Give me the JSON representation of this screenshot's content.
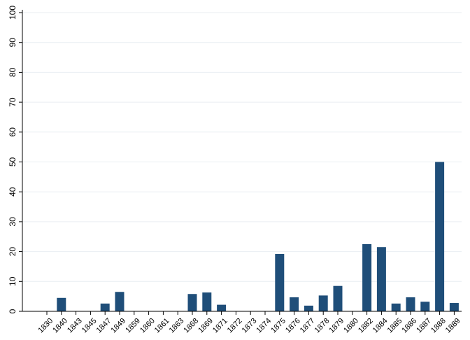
{
  "chart_data": {
    "type": "bar",
    "title": "",
    "xlabel": "",
    "ylabel": "",
    "ylim": [
      0,
      100
    ],
    "yticks": [
      0,
      10,
      20,
      30,
      40,
      50,
      60,
      70,
      80,
      90,
      100
    ],
    "grid": true,
    "legend": "none",
    "bar_color": "#1f4e79",
    "categories": [
      "1830",
      "1840",
      "1843",
      "1845",
      "1847",
      "1849",
      "1859",
      "1860",
      "1861",
      "1863",
      "1868",
      "1869",
      "1871",
      "1872",
      "1873",
      "1874",
      "1875",
      "1876",
      "1877",
      "1878",
      "1879",
      "1880",
      "1882",
      "1884",
      "1885",
      "1886",
      "1887",
      "1888",
      "1889"
    ],
    "values": [
      0,
      4.5,
      0,
      0,
      2.6,
      6.5,
      0,
      0,
      0,
      0,
      5.8,
      6.3,
      2.2,
      0,
      0,
      0,
      19.2,
      4.7,
      1.9,
      5.3,
      8.5,
      0,
      22.5,
      21.5,
      2.6,
      4.7,
      3.2,
      50,
      2.8
    ]
  }
}
